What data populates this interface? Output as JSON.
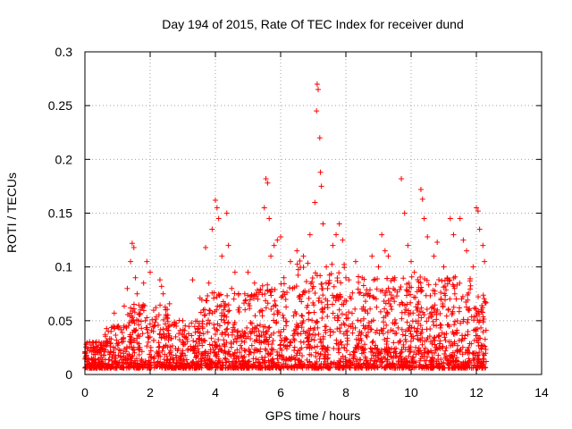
{
  "chart_data": {
    "type": "scatter",
    "title": "Day 194 of 2015, Rate Of TEC Index for receiver dund",
    "xlabel": "GPS time / hours",
    "ylabel": "ROTI / TECUs",
    "xlim": [
      0,
      14
    ],
    "ylim": [
      0,
      0.3
    ],
    "xticks": [
      "0",
      "2",
      "4",
      "6",
      "8",
      "10",
      "12",
      "14"
    ],
    "yticks": [
      "0",
      "0.05",
      "0.1",
      "0.15",
      "0.2",
      "0.25",
      "0.3"
    ],
    "grid": true,
    "marker": "+",
    "color": "#ff0000",
    "x_data_range": [
      0,
      12.3
    ],
    "series": [
      {
        "points": [
          [
            0.05,
            0.018
          ],
          [
            0.1,
            0.024
          ],
          [
            0.2,
            0.015
          ],
          [
            0.3,
            0.022
          ],
          [
            0.5,
            0.012
          ],
          [
            0.7,
            0.03
          ],
          [
            0.8,
            0.04
          ],
          [
            0.9,
            0.057
          ],
          [
            1.2,
            0.045
          ],
          [
            1.3,
            0.08
          ],
          [
            1.4,
            0.105
          ],
          [
            1.45,
            0.122
          ],
          [
            1.5,
            0.118
          ],
          [
            1.55,
            0.09
          ],
          [
            1.6,
            0.075
          ],
          [
            1.7,
            0.06
          ],
          [
            1.8,
            0.085
          ],
          [
            1.9,
            0.105
          ],
          [
            2.0,
            0.095
          ],
          [
            2.1,
            0.04
          ],
          [
            2.3,
            0.088
          ],
          [
            2.35,
            0.082
          ],
          [
            2.4,
            0.075
          ],
          [
            2.5,
            0.035
          ],
          [
            2.8,
            0.045
          ],
          [
            3.0,
            0.05
          ],
          [
            3.3,
            0.088
          ],
          [
            3.5,
            0.045
          ],
          [
            3.7,
            0.118
          ],
          [
            3.8,
            0.085
          ],
          [
            3.9,
            0.135
          ],
          [
            4.0,
            0.162
          ],
          [
            4.05,
            0.155
          ],
          [
            4.1,
            0.145
          ],
          [
            4.2,
            0.11
          ],
          [
            4.35,
            0.15
          ],
          [
            4.4,
            0.12
          ],
          [
            4.5,
            0.08
          ],
          [
            4.6,
            0.095
          ],
          [
            4.7,
            0.06
          ],
          [
            4.9,
            0.075
          ],
          [
            5.0,
            0.095
          ],
          [
            5.2,
            0.085
          ],
          [
            5.3,
            0.07
          ],
          [
            5.5,
            0.155
          ],
          [
            5.55,
            0.182
          ],
          [
            5.6,
            0.178
          ],
          [
            5.65,
            0.145
          ],
          [
            5.7,
            0.11
          ],
          [
            5.8,
            0.12
          ],
          [
            5.9,
            0.125
          ],
          [
            6.0,
            0.128
          ],
          [
            6.1,
            0.09
          ],
          [
            6.3,
            0.105
          ],
          [
            6.5,
            0.115
          ],
          [
            6.7,
            0.11
          ],
          [
            6.9,
            0.13
          ],
          [
            7.05,
            0.16
          ],
          [
            7.1,
            0.245
          ],
          [
            7.12,
            0.27
          ],
          [
            7.15,
            0.265
          ],
          [
            7.2,
            0.22
          ],
          [
            7.22,
            0.188
          ],
          [
            7.25,
            0.175
          ],
          [
            7.3,
            0.14
          ],
          [
            7.4,
            0.1
          ],
          [
            7.5,
            0.085
          ],
          [
            7.6,
            0.12
          ],
          [
            7.7,
            0.13
          ],
          [
            7.8,
            0.14
          ],
          [
            7.9,
            0.125
          ],
          [
            8.0,
            0.09
          ],
          [
            8.3,
            0.105
          ],
          [
            8.5,
            0.09
          ],
          [
            8.8,
            0.11
          ],
          [
            9.0,
            0.1
          ],
          [
            9.1,
            0.13
          ],
          [
            9.2,
            0.115
          ],
          [
            9.3,
            0.11
          ],
          [
            9.5,
            0.09
          ],
          [
            9.7,
            0.182
          ],
          [
            9.8,
            0.15
          ],
          [
            9.9,
            0.12
          ],
          [
            10.0,
            0.105
          ],
          [
            10.1,
            0.095
          ],
          [
            10.3,
            0.172
          ],
          [
            10.35,
            0.163
          ],
          [
            10.4,
            0.145
          ],
          [
            10.5,
            0.128
          ],
          [
            10.7,
            0.11
          ],
          [
            10.8,
            0.123
          ],
          [
            11.0,
            0.1
          ],
          [
            11.2,
            0.145
          ],
          [
            11.3,
            0.13
          ],
          [
            11.5,
            0.145
          ],
          [
            11.6,
            0.125
          ],
          [
            11.7,
            0.115
          ],
          [
            11.9,
            0.1
          ],
          [
            12.0,
            0.155
          ],
          [
            12.05,
            0.152
          ],
          [
            12.1,
            0.135
          ],
          [
            12.2,
            0.12
          ],
          [
            12.25,
            0.105
          ],
          [
            12.3,
            0.012
          ]
        ]
      }
    ]
  }
}
